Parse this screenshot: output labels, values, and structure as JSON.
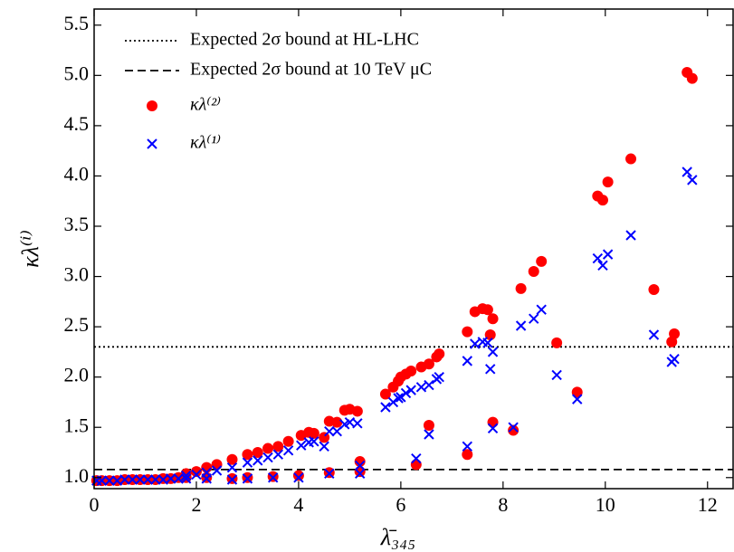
{
  "chart_data": {
    "type": "scatter",
    "xlabel": "λ̄₃₄₅",
    "ylabel": "κλ⁽ⁱ⁾",
    "xlim": [
      0,
      12.5
    ],
    "ylim": [
      0.89,
      5.66
    ],
    "xticks": [
      0,
      2,
      4,
      6,
      8,
      10,
      12
    ],
    "yticks": [
      {
        "value": 1.0,
        "label": "1.0"
      },
      {
        "value": 1.5,
        "label": "1.5"
      },
      {
        "value": 2.0,
        "label": "2.0"
      },
      {
        "value": 2.5,
        "label": "2.5"
      },
      {
        "value": 3.0,
        "label": "3.0"
      },
      {
        "value": 3.5,
        "label": "3.5"
      },
      {
        "value": 4.0,
        "label": "4.0"
      },
      {
        "value": 4.5,
        "label": "4.5"
      },
      {
        "value": 5.0,
        "label": "5.0"
      },
      {
        "value": 5.5,
        "label": "5.5"
      }
    ],
    "legend": "upper left",
    "hlines": [
      {
        "name": "Expected 2σ bound at HL-LHC",
        "y": 2.3,
        "linestyle": "dotted",
        "color": "#000000"
      },
      {
        "name": "Expected 2σ bound at 10 TeV μC",
        "y": 1.08,
        "linestyle": "dashed",
        "color": "#000000"
      }
    ],
    "x": [
      0.05,
      0.15,
      0.3,
      0.45,
      0.6,
      0.75,
      0.9,
      1.05,
      1.2,
      1.35,
      1.5,
      1.65,
      1.8,
      1.8,
      2.0,
      2.2,
      2.4,
      2.7,
      3.0,
      3.2,
      3.4,
      3.6,
      3.8,
      4.05,
      4.2,
      4.3,
      4.5,
      4.6,
      4.75,
      4.9,
      5.0,
      5.15,
      5.7,
      5.85,
      5.95,
      6.0,
      6.1,
      6.2,
      6.4,
      6.55,
      6.7,
      6.75,
      7.3,
      7.45,
      7.6,
      7.7,
      7.75,
      7.8,
      8.35,
      8.6,
      8.75,
      9.05,
      9.45,
      9.85,
      9.95,
      10.05,
      10.5,
      10.95,
      11.3,
      11.35,
      11.6,
      11.7,
      2.2,
      2.7,
      3.0,
      3.5,
      4.0,
      4.6,
      5.2,
      5.2,
      6.3,
      6.55,
      7.3,
      7.8,
      8.2
    ],
    "series": [
      {
        "name": "κλ⁽²⁾",
        "marker": "circle",
        "color": "#ff0000",
        "values": [
          0.97,
          0.97,
          0.97,
          0.97,
          0.98,
          0.98,
          0.98,
          0.98,
          0.98,
          0.99,
          0.99,
          1.0,
          1.0,
          1.04,
          1.06,
          1.1,
          1.13,
          1.18,
          1.23,
          1.25,
          1.29,
          1.31,
          1.36,
          1.42,
          1.45,
          1.44,
          1.4,
          1.56,
          1.55,
          1.67,
          1.68,
          1.66,
          1.83,
          1.9,
          1.96,
          2.0,
          2.03,
          2.06,
          2.1,
          2.13,
          2.2,
          2.23,
          2.45,
          2.65,
          2.68,
          2.67,
          2.42,
          2.58,
          2.88,
          3.05,
          3.15,
          2.34,
          1.85,
          3.8,
          3.76,
          3.94,
          4.17,
          2.87,
          2.35,
          2.43,
          5.03,
          4.97,
          1.0,
          0.99,
          1.0,
          1.01,
          1.02,
          1.05,
          1.06,
          1.16,
          1.13,
          1.52,
          1.23,
          1.55,
          1.47
        ]
      },
      {
        "name": "κλ⁽¹⁾",
        "marker": "x",
        "color": "#0000ff",
        "values": [
          0.97,
          0.97,
          0.97,
          0.97,
          0.98,
          0.98,
          0.98,
          0.98,
          0.98,
          0.98,
          0.99,
          0.99,
          0.99,
          1.02,
          1.03,
          1.05,
          1.07,
          1.1,
          1.15,
          1.17,
          1.2,
          1.23,
          1.27,
          1.32,
          1.35,
          1.36,
          1.31,
          1.46,
          1.46,
          1.53,
          1.55,
          1.54,
          1.7,
          1.75,
          1.79,
          1.8,
          1.84,
          1.87,
          1.9,
          1.92,
          1.98,
          2.0,
          2.16,
          2.33,
          2.35,
          2.34,
          2.08,
          2.25,
          2.51,
          2.58,
          2.67,
          2.02,
          1.78,
          3.18,
          3.11,
          3.22,
          3.41,
          2.42,
          2.15,
          2.18,
          4.04,
          3.96,
          0.99,
          0.98,
          0.99,
          1.0,
          1.0,
          1.04,
          1.04,
          1.12,
          1.19,
          1.43,
          1.31,
          1.49,
          1.5
        ]
      }
    ]
  }
}
